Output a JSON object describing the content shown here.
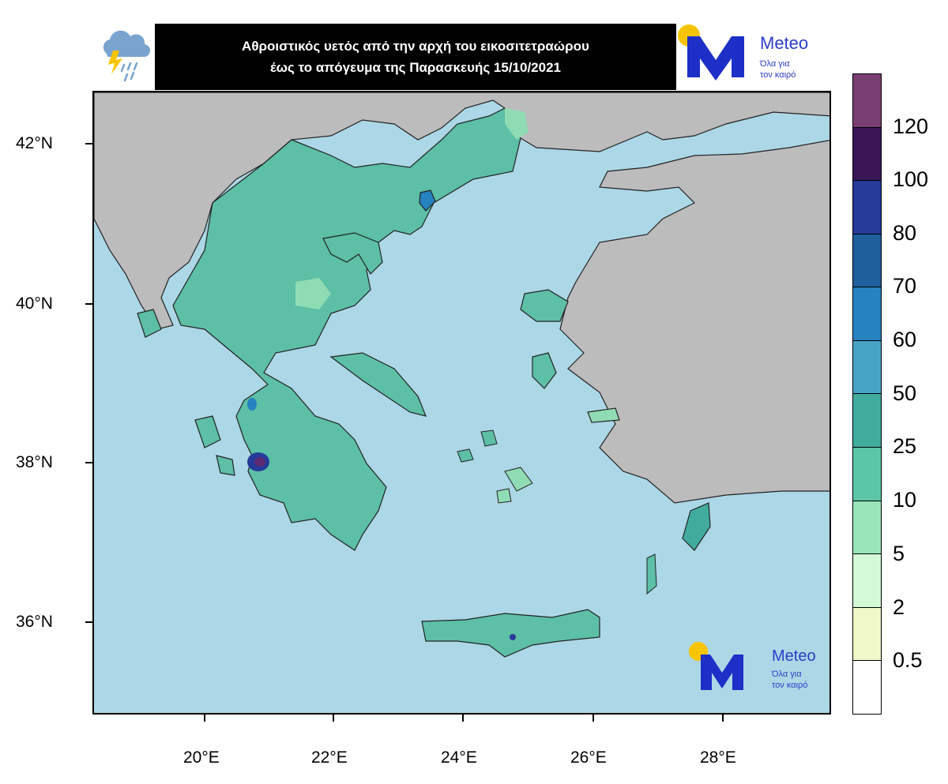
{
  "header": {
    "title_line1": "Αθροιστικός υετός από την αρχή του εικοσιτετραώρου",
    "title_line2": "έως το απόγευμα της Παρασκευής 15/10/2021",
    "weather_icon": "rain-thunder-cloud-icon"
  },
  "brand": {
    "name": "Meteo",
    "tagline_line1": "Όλα για",
    "tagline_line2": "τον καιρό",
    "colors": {
      "blue": "#1d2fc6",
      "sun": "#f7c500"
    }
  },
  "map": {
    "latitude_labels": [
      "42°N",
      "40°N",
      "38°N",
      "36°N"
    ],
    "longitude_labels": [
      "20°E",
      "22°E",
      "24°E",
      "26°E",
      "28°E"
    ],
    "colors": {
      "sea": "#acd7e6",
      "land_outside": "#bcbcbc",
      "precip_main": "#5cbfa6",
      "precip_light": "#8fdcb4",
      "max_precip": "#5b2a72"
    }
  },
  "colorbar": {
    "labels": [
      "120",
      "100",
      "80",
      "70",
      "60",
      "50",
      "25",
      "10",
      "5",
      "2",
      "0.5"
    ],
    "colors": [
      "#7a3f72",
      "#3a1657",
      "#263a9a",
      "#1f5f9c",
      "#2782c0",
      "#47a4c6",
      "#41ac9e",
      "#5cc6a8",
      "#98e6b9",
      "#d3f9d6",
      "#f0f7c8",
      "#ffffff"
    ]
  }
}
